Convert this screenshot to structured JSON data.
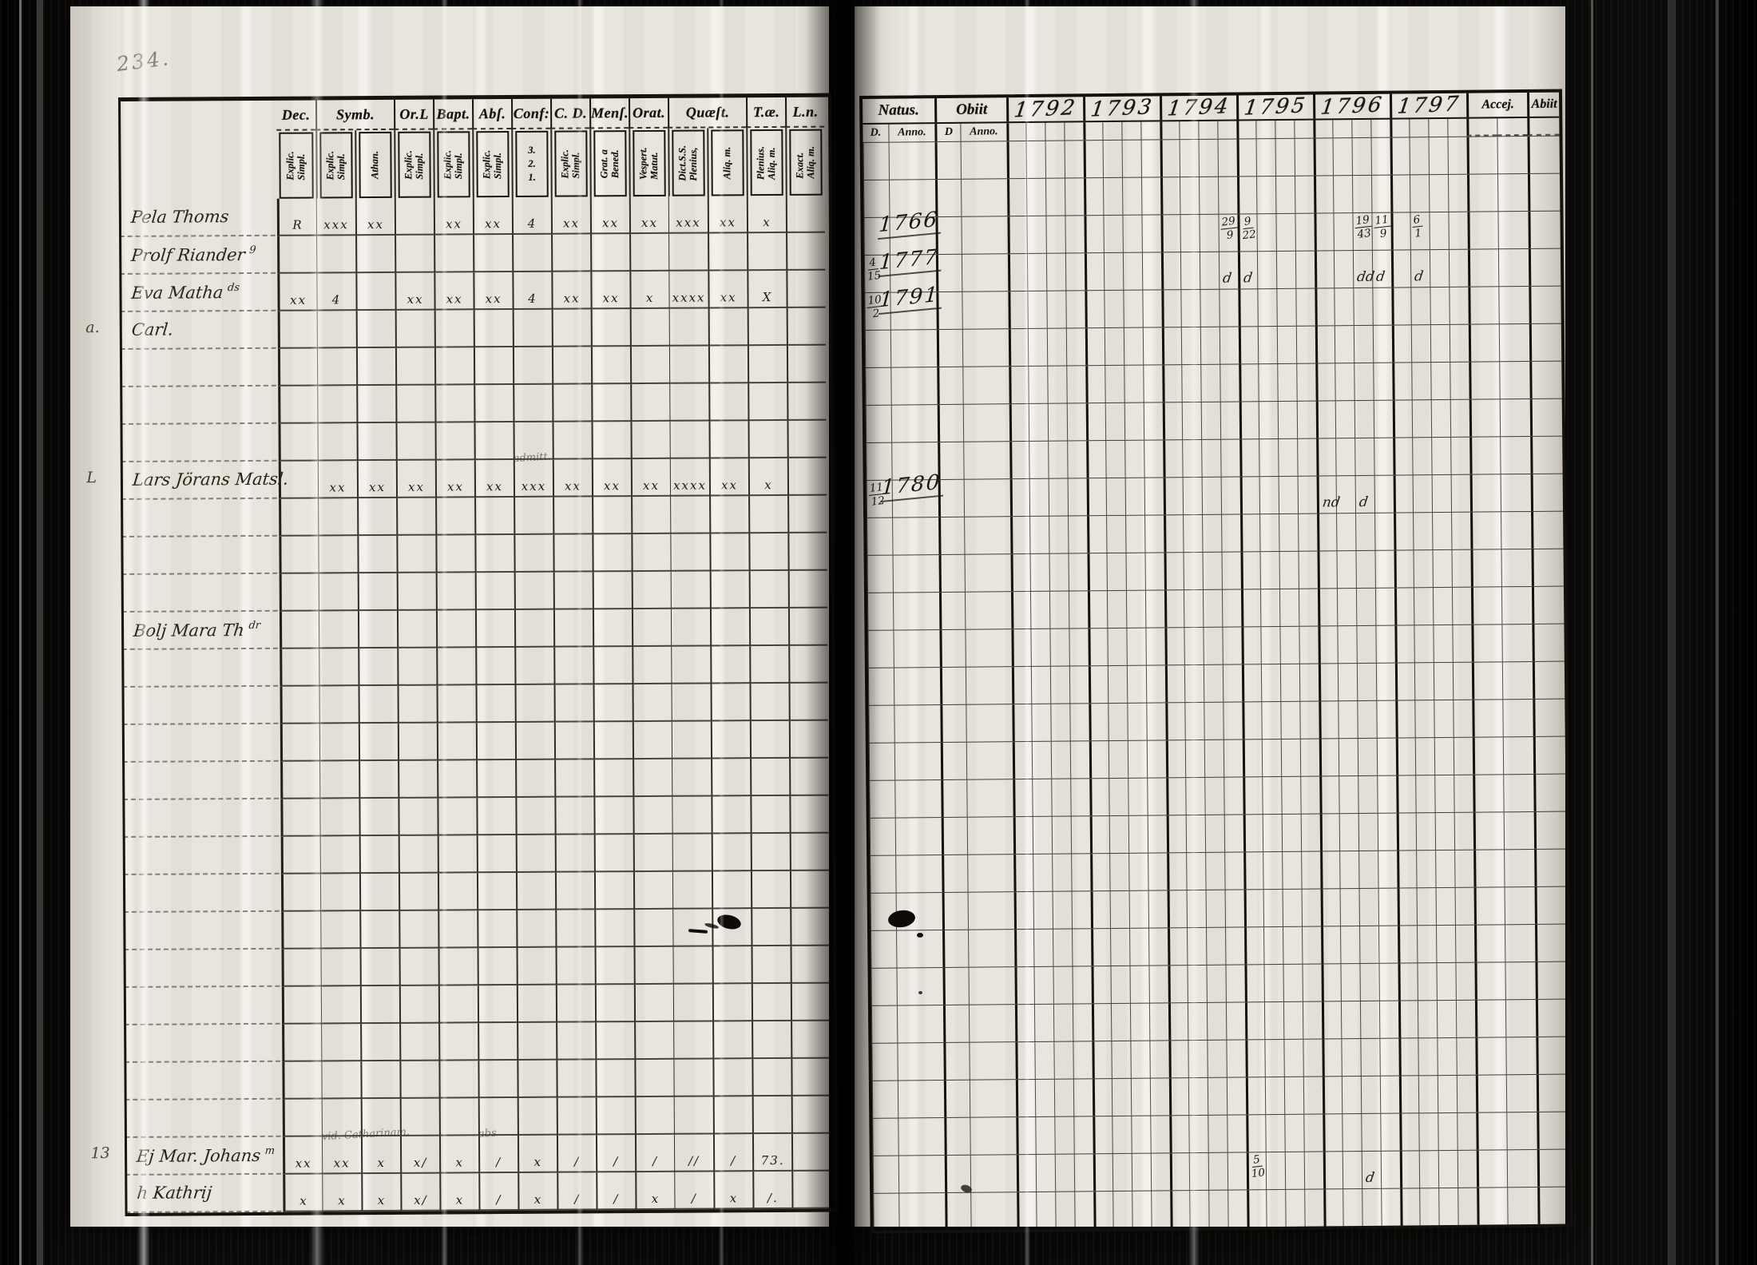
{
  "page_number": "234.",
  "colors": {
    "paper": "#e8e5dd",
    "ink": "#17130d",
    "film": "#080807"
  },
  "left_table": {
    "row_count": 27,
    "header": [
      {
        "label": "Dec.",
        "subs": [
          {
            "lines": [
              "Explic.",
              "Simpl."
            ]
          }
        ]
      },
      {
        "label": "Symb.",
        "subs": [
          {
            "lines": [
              "Explic.",
              "Simpl."
            ]
          },
          {
            "lines": [
              "Athan."
            ]
          }
        ]
      },
      {
        "label": "Or.L",
        "subs": [
          {
            "lines": [
              "Explic.",
              "Simpl."
            ]
          }
        ]
      },
      {
        "label": "Bapt.",
        "subs": [
          {
            "lines": [
              "Explic.",
              "Simpl."
            ]
          }
        ]
      },
      {
        "label": "Abſ.",
        "subs": [
          {
            "lines": [
              "Explic.",
              "Simpl."
            ]
          }
        ]
      },
      {
        "label": "Conf:",
        "subs": [
          {
            "lines": [
              "3.",
              "2.",
              "1."
            ],
            "upright": true
          }
        ]
      },
      {
        "label": "C. D.",
        "subs": [
          {
            "lines": [
              "Explic.",
              "Simpl."
            ]
          }
        ]
      },
      {
        "label": "Menſ.",
        "subs": [
          {
            "lines": [
              "Grat. a",
              "Bened."
            ]
          }
        ]
      },
      {
        "label": "Orat.",
        "subs": [
          {
            "lines": [
              "Vespert.",
              "Matut."
            ]
          }
        ]
      },
      {
        "label": "Quæſt.",
        "subs": [
          {
            "lines": [
              "Dict.S.S.",
              "Plenius,"
            ]
          },
          {
            "lines": [
              "Aliq. m."
            ]
          }
        ]
      },
      {
        "label": "T.æ.",
        "subs": [
          {
            "lines": [
              "Plenius.",
              "Aliq. m."
            ]
          }
        ]
      },
      {
        "label": "L.n.",
        "subs": [
          {
            "lines": [
              "Exact.",
              "Aliq. m."
            ]
          }
        ]
      }
    ],
    "entries": {
      "0": {
        "name": "Pela Thoms",
        "marks": [
          "R",
          "xxx",
          "xx",
          "",
          "xx",
          "xx",
          "4",
          "xx",
          "xx",
          "xx",
          "xxx",
          "xx",
          "x",
          ""
        ]
      },
      "1": {
        "name": "Prolf Riander",
        "sup": "9"
      },
      "2": {
        "name": "Eva Matha",
        "sup": "ds",
        "marks": [
          "xx",
          "4",
          "",
          "xx",
          "xx",
          "xx",
          "4",
          "xx",
          "xx",
          "x",
          "xxxx",
          "xx",
          "X",
          ""
        ]
      },
      "3": {
        "margin": "a.",
        "name": "Carl."
      },
      "7": {
        "margin": "L",
        "name": "Lars Jörans Matsl.",
        "marks": [
          "",
          "xx",
          "xx",
          "xx",
          "xx",
          "xx",
          "xxx",
          "xx",
          "xx",
          "xx",
          "xxxx",
          "xx",
          "x",
          ""
        ],
        "notes": [
          {
            "text": "admitt.",
            "col": 6
          }
        ]
      },
      "11": {
        "name": "Bolj Mara Th",
        "sup": "dr"
      },
      "25": {
        "margin": "13",
        "name": "Ej Mar. Johans",
        "sup": "m",
        "marks": [
          "xx",
          "xx",
          "x",
          "x/",
          "x",
          "/",
          "x",
          "/",
          "/",
          "/",
          "//",
          "/",
          "73.",
          ""
        ],
        "notes": [
          {
            "text": "vid. Catharinam.",
            "col": 1
          },
          {
            "text": "abs",
            "col": 5
          }
        ]
      },
      "26": {
        "name": "h Kathrij",
        "marks": [
          "x",
          "x",
          "x",
          "x/",
          "x",
          "/",
          "x",
          "/",
          "/",
          "x",
          "/",
          "x",
          "/.",
          ""
        ]
      }
    }
  },
  "right_table": {
    "row_count": 29,
    "header": [
      {
        "key": "natus",
        "label": "Natus.",
        "subs": [
          "D.",
          "Anno."
        ],
        "widths": [
          32,
          58
        ]
      },
      {
        "key": "obiit",
        "label": "Obiit",
        "subs": [
          "D",
          "Anno."
        ],
        "widths": [
          32,
          58
        ]
      },
      {
        "key": "1792",
        "label": "1792",
        "year": true,
        "subs": [
          "",
          "",
          "",
          ""
        ],
        "widths": [
          24,
          24,
          24,
          24
        ]
      },
      {
        "key": "1793",
        "label": "1793",
        "year": true,
        "subs": [
          "",
          "",
          "",
          ""
        ],
        "widths": [
          24,
          24,
          24,
          24
        ]
      },
      {
        "key": "1794",
        "label": "1794",
        "year": true,
        "subs": [
          "",
          "",
          "",
          ""
        ],
        "widths": [
          24,
          24,
          24,
          24
        ]
      },
      {
        "key": "1795",
        "label": "1795",
        "year": true,
        "subs": [
          "",
          "",
          "",
          ""
        ],
        "widths": [
          24,
          24,
          24,
          24
        ]
      },
      {
        "key": "1796",
        "label": "1796",
        "year": true,
        "subs": [
          "",
          "",
          "",
          ""
        ],
        "widths": [
          24,
          24,
          24,
          24
        ]
      },
      {
        "key": "1797",
        "label": "1797",
        "year": true,
        "subs": [
          "",
          "",
          "",
          ""
        ],
        "widths": [
          24,
          24,
          24,
          24
        ]
      },
      {
        "key": "acc",
        "label": "Accej.",
        "small": true,
        "dash": true,
        "subs": [
          "",
          ""
        ],
        "widths": [
          38,
          38
        ]
      },
      {
        "key": "abi",
        "label": "Abiit",
        "small": true,
        "dash": true,
        "subs": [
          ""
        ],
        "widths": [
          40
        ]
      }
    ],
    "entries": {
      "2": {
        "natus_1": "1766",
        "1794_3": "29/9",
        "1795_0": "9/22",
        "1796_2": "19/43",
        "1796_3": "11/9",
        "1797_1": "6/1"
      },
      "3": {
        "natus_0": "4/15",
        "natus_1": "1777",
        "1794_3": "d",
        "1795_0": "d",
        "1796_2": "dd",
        "1796_3": "d",
        "1797_1": "d"
      },
      "4": {
        "natus_0": "10/2",
        "natus_1": "1791"
      },
      "9": {
        "natus_0": "11/12",
        "natus_1": "1780",
        "1796_0": "nd",
        "1796_2": "d"
      },
      "27": {
        "1795_0": "5/10",
        "1796_2": "d"
      }
    }
  }
}
